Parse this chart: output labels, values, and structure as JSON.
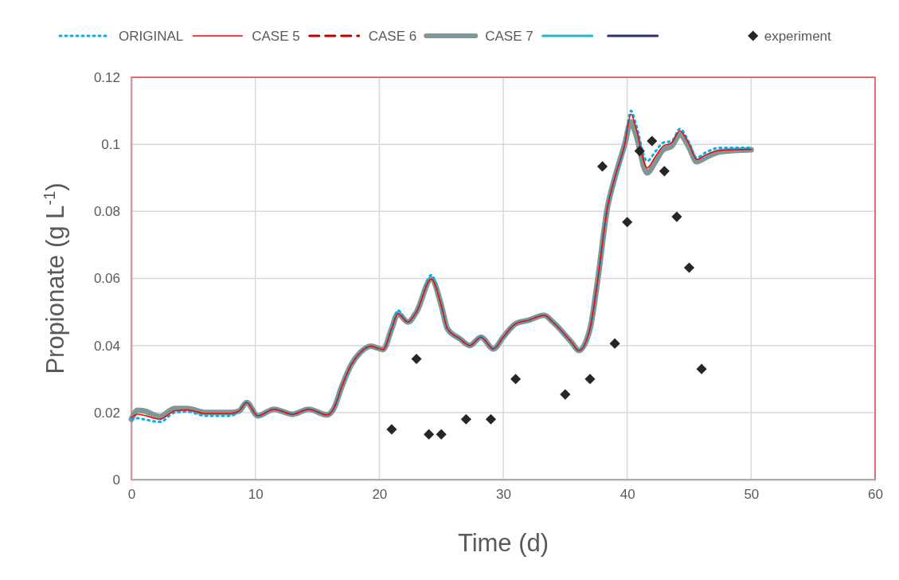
{
  "chart_data": {
    "type": "line",
    "xlabel": "Time (d)",
    "ylabel": "Propionate (g L$^{-1}$)",
    "x": [
      0,
      0.5,
      1,
      2.3,
      3.5,
      4.5,
      6,
      8,
      8.7,
      9.3,
      10.2,
      11.5,
      13,
      14.3,
      15.8,
      16.3,
      17,
      17.7,
      18.5,
      19.3,
      20.3,
      21,
      21.5,
      22.3,
      23,
      24.2,
      25,
      25.5,
      26.5,
      27.3,
      28.2,
      29.2,
      30,
      31,
      32,
      33.3,
      34,
      35.5,
      36.1,
      37,
      37.6,
      38.4,
      39,
      39.8,
      40.3,
      40.7,
      41.6,
      42.3,
      42.9,
      43.6,
      44.25,
      45,
      45.6,
      46.3,
      47.5,
      50
    ],
    "xlim": [
      0,
      60
    ],
    "xticks": [
      0,
      10,
      20,
      30,
      40,
      50,
      60
    ],
    "ylim": [
      0,
      0.12
    ],
    "yticks": [
      {
        "value": 0,
        "label": "0"
      },
      {
        "value": 0.02,
        "label": "0.02"
      },
      {
        "value": 0.04,
        "label": "0.04"
      },
      {
        "value": 0.06,
        "label": "0.06"
      },
      {
        "value": 0.08,
        "label": "0.08"
      },
      {
        "value": 0.1,
        "label": "0.1"
      },
      {
        "value": 0.12,
        "label": "0.12"
      }
    ],
    "grid": true,
    "legend": "top",
    "series": [
      {
        "name": "ORIGINAL",
        "color": "#00b0f0",
        "line_style": "dotted",
        "values": [
          0.018,
          0.0183,
          0.018,
          0.0172,
          0.02,
          0.0203,
          0.019,
          0.019,
          0.0205,
          0.023,
          0.019,
          0.021,
          0.0195,
          0.021,
          0.0193,
          0.021,
          0.028,
          0.034,
          0.038,
          0.0398,
          0.0388,
          0.045,
          0.0505,
          0.047,
          0.05,
          0.061,
          0.052,
          0.045,
          0.042,
          0.04,
          0.0425,
          0.039,
          0.0425,
          0.0465,
          0.0475,
          0.049,
          0.047,
          0.041,
          0.0385,
          0.045,
          0.059,
          0.081,
          0.09,
          0.1,
          0.11,
          0.106,
          0.095,
          0.098,
          0.1005,
          0.101,
          0.1046,
          0.1005,
          0.096,
          0.0975,
          0.099,
          0.099
        ]
      },
      {
        "name": "CASE 5",
        "color": "#ff0000",
        "line_style": "solid",
        "values": [
          0.0185,
          0.0195,
          0.0192,
          0.018,
          0.0205,
          0.0208,
          0.0197,
          0.0197,
          0.0205,
          0.023,
          0.019,
          0.021,
          0.0195,
          0.021,
          0.0193,
          0.021,
          0.028,
          0.034,
          0.038,
          0.0398,
          0.0388,
          0.045,
          0.0495,
          0.047,
          0.05,
          0.0598,
          0.052,
          0.045,
          0.042,
          0.04,
          0.0425,
          0.039,
          0.0425,
          0.0465,
          0.0475,
          0.049,
          0.047,
          0.041,
          0.0385,
          0.045,
          0.059,
          0.081,
          0.09,
          0.1,
          0.109,
          0.105,
          0.093,
          0.0965,
          0.0995,
          0.1005,
          0.104,
          0.1,
          0.0955,
          0.0968,
          0.0982,
          0.0985
        ]
      },
      {
        "name": "CASE 6",
        "color": "#c00000",
        "line_style": "dashed",
        "values": [
          null,
          null,
          null,
          null,
          null,
          null,
          null,
          null,
          null,
          null,
          null,
          null,
          null,
          null,
          null,
          null,
          null,
          null,
          null,
          null,
          null,
          null,
          null,
          null,
          null,
          null,
          null,
          null,
          null,
          null,
          null,
          null,
          null,
          null,
          null,
          null,
          null,
          null,
          null,
          null,
          null,
          null,
          null,
          null,
          null,
          null,
          null,
          null,
          null,
          null,
          null,
          null,
          null,
          null,
          null,
          null
        ]
      },
      {
        "name": "CASE 7",
        "color": "#7f9795",
        "line_style": "solid",
        "values": [
          0.018,
          0.0207,
          0.0205,
          0.0188,
          0.0212,
          0.0212,
          0.02,
          0.02,
          0.0205,
          0.023,
          0.019,
          0.021,
          0.0195,
          0.021,
          0.0193,
          0.021,
          0.028,
          0.034,
          0.038,
          0.0398,
          0.0388,
          0.045,
          0.0495,
          0.047,
          0.05,
          0.0598,
          0.052,
          0.045,
          0.042,
          0.04,
          0.0425,
          0.039,
          0.0425,
          0.0465,
          0.0475,
          0.049,
          0.047,
          0.041,
          0.0385,
          0.045,
          0.059,
          0.081,
          0.09,
          0.1,
          0.1067,
          0.103,
          0.0915,
          0.095,
          0.0984,
          0.0995,
          0.1029,
          0.099,
          0.0948,
          0.096,
          0.0978,
          0.0984
        ]
      },
      {
        "color": "#22b5d4",
        "line_style": "solid",
        "values": [
          null,
          null,
          null,
          null,
          null,
          null,
          null,
          null,
          null,
          null,
          null,
          null,
          null,
          null,
          null,
          null,
          null,
          null,
          null,
          null,
          null,
          null,
          null,
          null,
          null,
          null,
          null,
          null,
          null,
          null,
          null,
          null,
          null,
          null,
          null,
          null,
          null,
          null,
          null,
          null,
          null,
          null,
          null,
          null,
          null,
          null,
          null,
          null,
          null,
          null,
          null,
          null,
          null,
          null,
          null,
          null
        ]
      },
      {
        "color": "#2e3170",
        "line_style": "solid",
        "values": [
          null,
          null,
          null,
          null,
          null,
          null,
          null,
          null,
          null,
          null,
          null,
          null,
          null,
          null,
          null,
          null,
          null,
          null,
          null,
          null,
          null,
          null,
          null,
          null,
          null,
          null,
          null,
          null,
          null,
          null,
          null,
          null,
          null,
          null,
          null,
          null,
          null,
          null,
          null,
          null,
          null,
          null,
          null,
          null,
          null,
          null,
          null,
          null,
          null,
          null,
          null,
          null,
          null,
          null,
          null,
          null
        ]
      },
      {
        "name": "experiment",
        "type": "scatter",
        "marker": "diamond",
        "color": "#262626",
        "x": [
          21,
          23,
          24,
          25,
          27,
          29,
          31,
          35,
          37,
          38,
          39,
          40,
          41,
          42,
          43,
          44,
          45,
          46
        ],
        "values": [
          0.015,
          0.036,
          0.0135,
          0.0135,
          0.018,
          0.018,
          0.03,
          0.0254,
          0.03,
          0.0934,
          0.0406,
          0.0768,
          0.098,
          0.101,
          0.092,
          0.0784,
          0.0632,
          0.033
        ]
      }
    ]
  }
}
